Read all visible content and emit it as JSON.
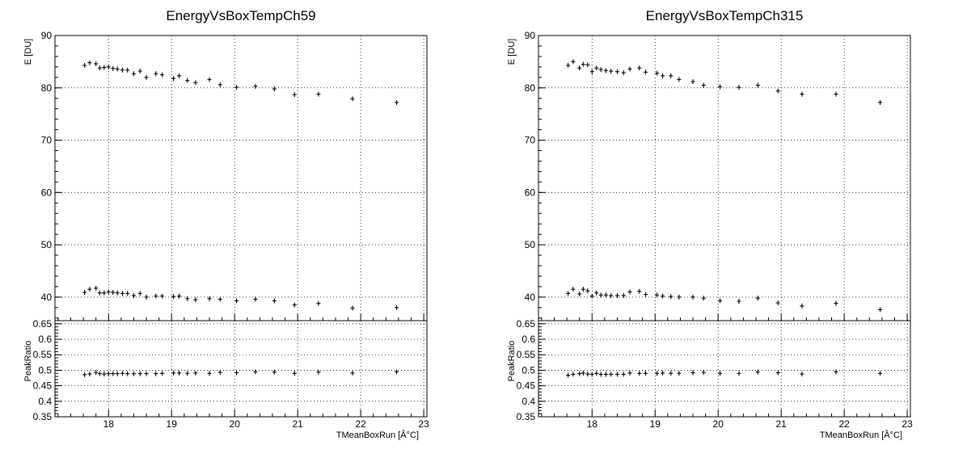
{
  "chart_data": [
    {
      "type": "scatter",
      "title": "EnergyVsBoxTempCh59",
      "xlabel": "TMeanBoxRun [Â°C]",
      "xlim": [
        17.15,
        23.05
      ],
      "x_ticks": [
        "18",
        "19",
        "20",
        "21",
        "22",
        "23"
      ],
      "top": {
        "ylabel": "E [DU]",
        "ylim": [
          35.5,
          90
        ],
        "y_ticks": [
          "40",
          "50",
          "60",
          "70",
          "80",
          "90"
        ],
        "grid": true,
        "series": [
          {
            "x": [
              17.62,
              17.7,
              17.8,
              17.86,
              17.93,
              18.0,
              18.07,
              18.14,
              18.22,
              18.3,
              18.4,
              18.5,
              18.6,
              18.75,
              18.85,
              19.03,
              19.12,
              19.25,
              19.38,
              19.6,
              19.77,
              20.03,
              20.33,
              20.63,
              20.95,
              21.33,
              21.87,
              22.57
            ],
            "y": [
              84.3,
              84.8,
              84.6,
              83.8,
              83.9,
              84.0,
              83.7,
              83.6,
              83.4,
              83.4,
              82.7,
              83.2,
              82.0,
              82.7,
              82.5,
              81.8,
              82.3,
              81.4,
              81.0,
              81.6,
              80.6,
              80.1,
              80.3,
              79.8,
              78.7,
              78.8,
              77.9,
              77.2
            ]
          },
          {
            "x": [
              17.62,
              17.7,
              17.8,
              17.86,
              17.93,
              18.0,
              18.07,
              18.14,
              18.22,
              18.3,
              18.4,
              18.5,
              18.6,
              18.75,
              18.85,
              19.03,
              19.12,
              19.25,
              19.38,
              19.6,
              19.77,
              20.03,
              20.33,
              20.63,
              20.95,
              21.33,
              21.87,
              22.57
            ],
            "y": [
              40.9,
              41.5,
              41.7,
              40.8,
              40.8,
              41.0,
              40.9,
              40.8,
              40.7,
              40.7,
              40.3,
              40.7,
              40.0,
              40.2,
              40.2,
              40.1,
              40.2,
              39.7,
              39.5,
              39.7,
              39.6,
              39.3,
              39.6,
              39.3,
              38.5,
              38.8,
              37.9,
              38.0
            ]
          }
        ]
      },
      "bottom": {
        "ylabel": "PeakRatio",
        "ylim": [
          0.35,
          0.66
        ],
        "y_ticks": [
          "0.35",
          "0.4",
          "0.45",
          "0.5",
          "0.55",
          "0.6",
          "0.65"
        ],
        "grid": true,
        "series": [
          {
            "x": [
              17.62,
              17.7,
              17.8,
              17.86,
              17.93,
              18.0,
              18.07,
              18.14,
              18.22,
              18.3,
              18.4,
              18.5,
              18.6,
              18.75,
              18.85,
              19.03,
              19.12,
              19.25,
              19.38,
              19.6,
              19.77,
              20.03,
              20.33,
              20.63,
              20.95,
              21.33,
              21.87,
              22.57
            ],
            "y": [
              0.486,
              0.488,
              0.493,
              0.489,
              0.488,
              0.489,
              0.489,
              0.489,
              0.49,
              0.489,
              0.489,
              0.489,
              0.489,
              0.489,
              0.49,
              0.491,
              0.491,
              0.49,
              0.491,
              0.49,
              0.493,
              0.492,
              0.495,
              0.494,
              0.49,
              0.494,
              0.491,
              0.495
            ]
          }
        ]
      }
    },
    {
      "type": "scatter",
      "title": "EnergyVsBoxTempCh315",
      "xlabel": "TMeanBoxRun [Â°C]",
      "xlim": [
        17.15,
        23.05
      ],
      "x_ticks": [
        "18",
        "19",
        "20",
        "21",
        "22",
        "23"
      ],
      "top": {
        "ylabel": "E [DU]",
        "ylim": [
          35.5,
          90
        ],
        "y_ticks": [
          "40",
          "50",
          "60",
          "70",
          "80",
          "90"
        ],
        "grid": true,
        "series": [
          {
            "x": [
              17.62,
              17.7,
              17.8,
              17.86,
              17.93,
              18.0,
              18.07,
              18.14,
              18.22,
              18.3,
              18.4,
              18.5,
              18.6,
              18.75,
              18.85,
              19.03,
              19.12,
              19.25,
              19.38,
              19.6,
              19.77,
              20.03,
              20.33,
              20.63,
              20.95,
              21.33,
              21.87,
              22.57
            ],
            "y": [
              84.3,
              85.0,
              83.8,
              84.5,
              84.4,
              83.1,
              83.8,
              83.5,
              83.3,
              83.2,
              83.1,
              82.9,
              83.6,
              83.8,
              83.0,
              82.8,
              82.3,
              82.3,
              81.6,
              81.2,
              80.5,
              80.2,
              80.1,
              80.5,
              79.4,
              78.8,
              78.8,
              77.2
            ]
          },
          {
            "x": [
              17.62,
              17.7,
              17.8,
              17.86,
              17.93,
              18.0,
              18.07,
              18.14,
              18.22,
              18.3,
              18.4,
              18.5,
              18.6,
              18.75,
              18.85,
              19.03,
              19.12,
              19.25,
              19.38,
              19.6,
              19.77,
              20.03,
              20.33,
              20.63,
              20.95,
              21.33,
              21.87,
              22.57
            ],
            "y": [
              40.7,
              41.5,
              40.6,
              41.5,
              41.2,
              40.2,
              40.8,
              40.4,
              40.4,
              40.3,
              40.3,
              40.3,
              41.0,
              41.1,
              40.5,
              40.4,
              40.2,
              40.1,
              40.0,
              40.0,
              39.8,
              39.3,
              39.2,
              39.8,
              38.9,
              38.3,
              38.8,
              37.6
            ]
          }
        ]
      },
      "bottom": {
        "ylabel": "PeakRatio",
        "ylim": [
          0.35,
          0.66
        ],
        "y_ticks": [
          "0.35",
          "0.4",
          "0.45",
          "0.5",
          "0.55",
          "0.6",
          "0.65"
        ],
        "grid": true,
        "series": [
          {
            "x": [
              17.62,
              17.7,
              17.8,
              17.86,
              17.93,
              18.0,
              18.07,
              18.14,
              18.22,
              18.3,
              18.4,
              18.5,
              18.6,
              18.75,
              18.85,
              19.03,
              19.12,
              19.25,
              19.38,
              19.6,
              19.77,
              20.03,
              20.33,
              20.63,
              20.95,
              21.33,
              21.87,
              22.57
            ],
            "y": [
              0.484,
              0.487,
              0.489,
              0.491,
              0.488,
              0.487,
              0.49,
              0.487,
              0.487,
              0.487,
              0.487,
              0.487,
              0.491,
              0.49,
              0.49,
              0.49,
              0.491,
              0.49,
              0.49,
              0.492,
              0.493,
              0.49,
              0.49,
              0.494,
              0.492,
              0.488,
              0.495,
              0.49
            ]
          }
        ]
      }
    }
  ]
}
